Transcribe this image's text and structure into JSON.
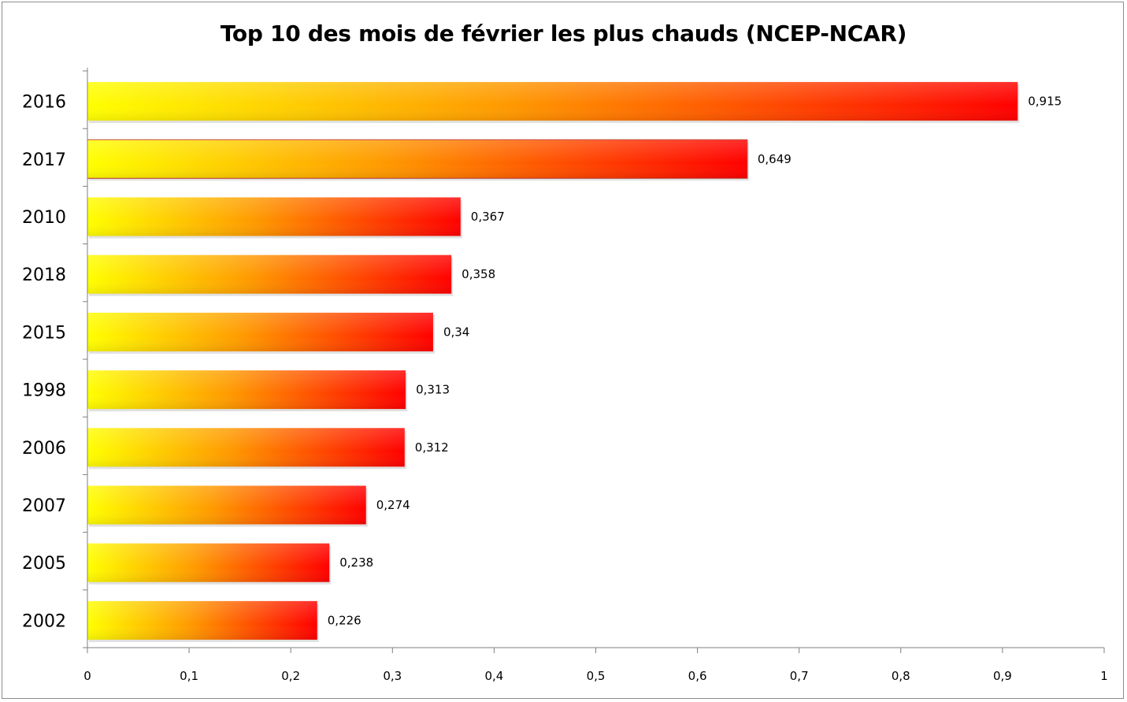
{
  "chart_data": {
    "type": "bar",
    "orientation": "horizontal",
    "title": "Top 10 des mois de février les plus chauds (NCEP-NCAR)",
    "xlabel": "",
    "ylabel": "",
    "categories": [
      "2016",
      "2017",
      "2010",
      "2018",
      "2015",
      "1998",
      "2006",
      "2007",
      "2005",
      "2002"
    ],
    "values": [
      0.915,
      0.649,
      0.367,
      0.358,
      0.34,
      0.313,
      0.312,
      0.274,
      0.238,
      0.226
    ],
    "value_labels": [
      "0,915",
      "0,649",
      "0,367",
      "0,358",
      "0,34",
      "0,313",
      "0,312",
      "0,274",
      "0,238",
      "0,226"
    ],
    "xlim": [
      0,
      1
    ],
    "x_ticks": [
      0,
      0.1,
      0.2,
      0.3,
      0.4,
      0.5,
      0.6,
      0.7,
      0.8,
      0.9,
      1
    ],
    "x_tick_labels": [
      "0",
      "0,1",
      "0,2",
      "0,3",
      "0,4",
      "0,5",
      "0,6",
      "0,7",
      "0,8",
      "0,9",
      "1"
    ],
    "grid": false,
    "legend": "none",
    "colors": {
      "gradient_start": "#ffff00",
      "gradient_mid": "#ff9900",
      "gradient_end": "#ff0000",
      "axis": "#7f7f7f",
      "frame": "#8c8c8c"
    }
  }
}
